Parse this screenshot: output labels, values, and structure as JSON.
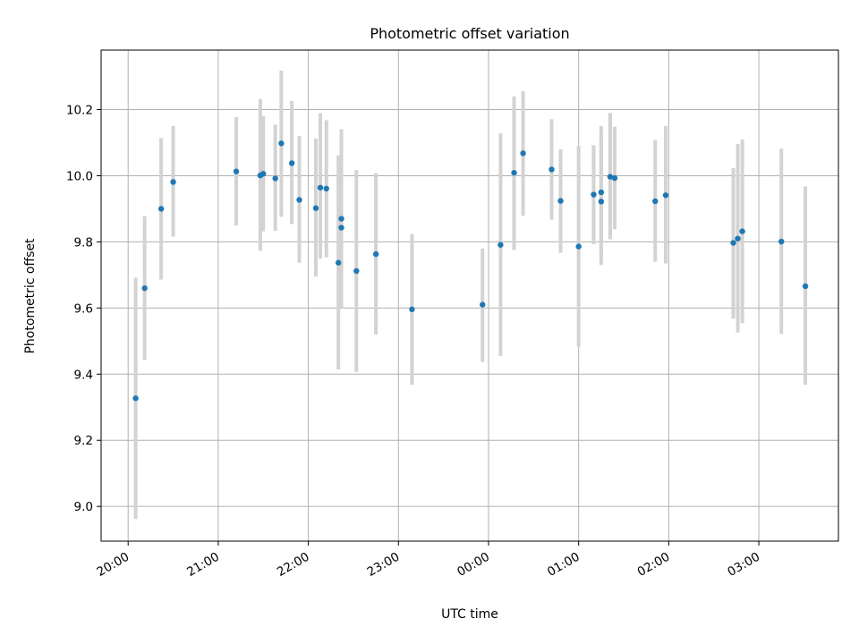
{
  "chart_data": {
    "type": "scatter",
    "title": "Photometric offset variation",
    "xlabel": "UTC time",
    "ylabel": "Photometric offset",
    "x_tick_labels": [
      "20:00",
      "21:00",
      "22:00",
      "23:00",
      "00:00",
      "01:00",
      "02:00",
      "03:00"
    ],
    "y_ticks": [
      9.0,
      9.2,
      9.4,
      9.6,
      9.8,
      10.0,
      10.2
    ],
    "y_tick_labels": [
      "9.0",
      "9.2",
      "9.4",
      "9.6",
      "9.8",
      "10.0",
      "10.2"
    ],
    "grid": true,
    "colors": {
      "point": "#1f77b4",
      "errorbar": "#d3d3d3"
    },
    "xlim": [
      "2000-01-01T19:42",
      "2000-01-02T03:53"
    ],
    "ylim": [
      8.895,
      10.38
    ],
    "points": [
      {
        "x": "2000-01-01T20:05",
        "y": 9.327,
        "lo": 8.962,
        "hi": 9.692
      },
      {
        "x": "2000-01-01T20:11",
        "y": 9.66,
        "lo": 9.443,
        "hi": 9.878
      },
      {
        "x": "2000-01-01T20:22",
        "y": 9.9,
        "lo": 9.686,
        "hi": 10.114
      },
      {
        "x": "2000-01-01T20:30",
        "y": 9.981,
        "lo": 9.816,
        "hi": 10.15
      },
      {
        "x": "2000-01-01T21:12",
        "y": 10.013,
        "lo": 9.849,
        "hi": 10.177
      },
      {
        "x": "2000-01-01T21:28",
        "y": 10.001,
        "lo": 9.773,
        "hi": 10.232
      },
      {
        "x": "2000-01-01T21:30",
        "y": 10.006,
        "lo": 9.832,
        "hi": 10.18
      },
      {
        "x": "2000-01-01T21:38",
        "y": 9.992,
        "lo": 9.833,
        "hi": 10.154
      },
      {
        "x": "2000-01-01T21:42",
        "y": 10.098,
        "lo": 9.876,
        "hi": 10.318
      },
      {
        "x": "2000-01-01T21:49",
        "y": 10.038,
        "lo": 9.854,
        "hi": 10.226
      },
      {
        "x": "2000-01-01T21:54",
        "y": 9.927,
        "lo": 9.737,
        "hi": 10.12
      },
      {
        "x": "2000-01-01T22:05",
        "y": 9.902,
        "lo": 9.695,
        "hi": 10.113
      },
      {
        "x": "2000-01-01T22:08",
        "y": 9.964,
        "lo": 9.749,
        "hi": 10.189
      },
      {
        "x": "2000-01-01T22:12",
        "y": 9.961,
        "lo": 9.753,
        "hi": 10.168
      },
      {
        "x": "2000-01-01T22:20",
        "y": 9.737,
        "lo": 9.414,
        "hi": 10.061
      },
      {
        "x": "2000-01-01T22:22",
        "y": 9.87,
        "lo": 9.6,
        "hi": 10.141
      },
      {
        "x": "2000-01-01T22:22",
        "y": 9.843,
        "lo": 9.643,
        "hi": 10.045
      },
      {
        "x": "2000-01-01T22:32",
        "y": 9.712,
        "lo": 9.407,
        "hi": 10.017
      },
      {
        "x": "2000-01-01T22:45",
        "y": 9.763,
        "lo": 9.52,
        "hi": 10.008
      },
      {
        "x": "2000-01-01T23:09",
        "y": 9.596,
        "lo": 9.368,
        "hi": 9.824
      },
      {
        "x": "2000-01-01T23:56",
        "y": 9.61,
        "lo": 9.437,
        "hi": 9.78
      },
      {
        "x": "2000-01-02T00:08",
        "y": 9.791,
        "lo": 9.455,
        "hi": 10.128
      },
      {
        "x": "2000-01-02T00:17",
        "y": 10.009,
        "lo": 9.775,
        "hi": 10.24
      },
      {
        "x": "2000-01-02T00:23",
        "y": 10.068,
        "lo": 9.879,
        "hi": 10.256
      },
      {
        "x": "2000-01-02T00:42",
        "y": 10.019,
        "lo": 9.867,
        "hi": 10.171
      },
      {
        "x": "2000-01-02T00:48",
        "y": 9.924,
        "lo": 9.767,
        "hi": 10.08
      },
      {
        "x": "2000-01-02T01:00",
        "y": 9.786,
        "lo": 9.484,
        "hi": 10.09
      },
      {
        "x": "2000-01-02T01:10",
        "y": 9.943,
        "lo": 9.793,
        "hi": 10.092
      },
      {
        "x": "2000-01-02T01:15",
        "y": 9.922,
        "lo": 9.73,
        "hi": 10.115
      },
      {
        "x": "2000-01-02T01:15",
        "y": 9.95,
        "lo": 9.753,
        "hi": 10.15
      },
      {
        "x": "2000-01-02T01:21",
        "y": 9.997,
        "lo": 9.808,
        "hi": 10.19
      },
      {
        "x": "2000-01-02T01:24",
        "y": 9.993,
        "lo": 9.838,
        "hi": 10.148
      },
      {
        "x": "2000-01-02T01:51",
        "y": 9.923,
        "lo": 9.74,
        "hi": 10.108
      },
      {
        "x": "2000-01-02T01:58",
        "y": 9.941,
        "lo": 9.735,
        "hi": 10.15
      },
      {
        "x": "2000-01-02T02:43",
        "y": 9.797,
        "lo": 9.568,
        "hi": 10.023
      },
      {
        "x": "2000-01-02T02:46",
        "y": 9.81,
        "lo": 9.526,
        "hi": 10.096
      },
      {
        "x": "2000-01-02T02:49",
        "y": 9.832,
        "lo": 9.554,
        "hi": 10.11
      },
      {
        "x": "2000-01-02T03:15",
        "y": 9.801,
        "lo": 9.522,
        "hi": 10.082
      },
      {
        "x": "2000-01-02T03:31",
        "y": 9.666,
        "lo": 9.368,
        "hi": 9.968
      }
    ]
  }
}
